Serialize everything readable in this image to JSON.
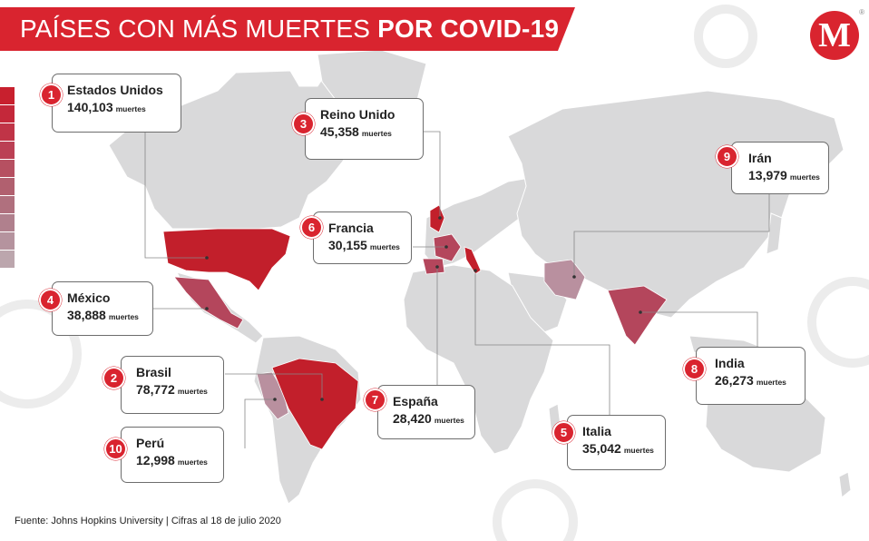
{
  "title": {
    "light": "PAÍSES CON MÁS MUERTES",
    "bold": "POR COVID-19"
  },
  "logo": {
    "letter": "M",
    "mark": "®"
  },
  "colors": {
    "accent": "#d9242f",
    "land": "#d9d9da",
    "rank_top": "#c21f2b",
    "rank_mid": "#b4465c",
    "rank_low": "#b9909f",
    "legend": [
      "#c8202e",
      "#c4283a",
      "#c03447",
      "#bb4054",
      "#b65061",
      "#b1606f",
      "#b0707e",
      "#b0808d",
      "#b5939e",
      "#bca6ad"
    ]
  },
  "countries": [
    {
      "rank": "1",
      "name": "Estados Unidos",
      "deaths": "140,103",
      "unit": "muertes"
    },
    {
      "rank": "2",
      "name": "Brasil",
      "deaths": "78,772",
      "unit": "muertes"
    },
    {
      "rank": "3",
      "name": "Reino Unido",
      "deaths": "45,358",
      "unit": "muertes"
    },
    {
      "rank": "4",
      "name": "México",
      "deaths": "38,888",
      "unit": "muertes"
    },
    {
      "rank": "5",
      "name": "Italia",
      "deaths": "35,042",
      "unit": "muertes"
    },
    {
      "rank": "6",
      "name": "Francia",
      "deaths": "30,155",
      "unit": "muertes"
    },
    {
      "rank": "7",
      "name": "España",
      "deaths": "28,420",
      "unit": "muertes"
    },
    {
      "rank": "8",
      "name": "India",
      "deaths": "26,273",
      "unit": "muertes"
    },
    {
      "rank": "9",
      "name": "Irán",
      "deaths": "13,979",
      "unit": "muertes"
    },
    {
      "rank": "10",
      "name": "Perú",
      "deaths": "12,998",
      "unit": "muertes"
    }
  ],
  "source": "Fuente: Johns Hopkins University | Cifras al 18 de julio 2020"
}
